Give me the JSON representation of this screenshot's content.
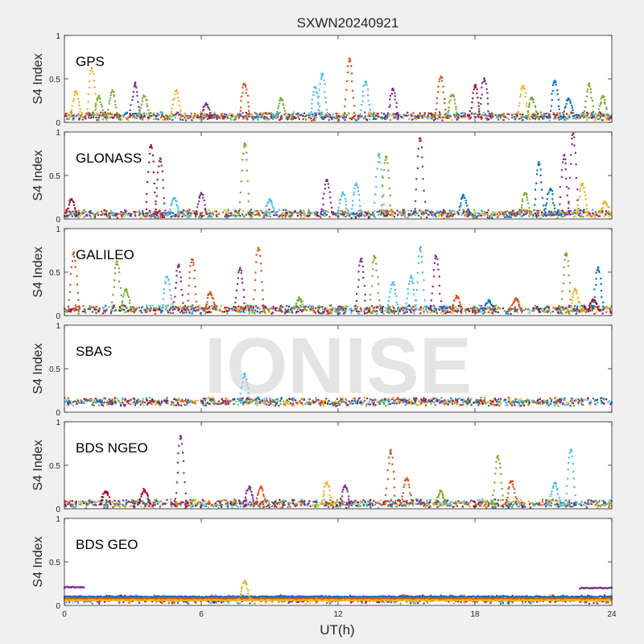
{
  "chart_data": {
    "type": "scatter",
    "title": "SXWN20240921",
    "xlabel": "UT(h)",
    "ylabel": "S4 Index",
    "xlim": [
      0,
      24
    ],
    "ylim": [
      0,
      1
    ],
    "x_ticks": [
      "0",
      "6",
      "12",
      "18",
      "24"
    ],
    "y_ticks": [
      "0",
      "0.5",
      "1"
    ],
    "grid": false,
    "watermark": "IONISE",
    "colors": [
      "#0072BD",
      "#D95319",
      "#EDB120",
      "#7E2F8E",
      "#77AC30",
      "#4DBEEE",
      "#A2142F"
    ],
    "panels": [
      {
        "label": "GPS",
        "baseline": 0.07,
        "spikes": [
          [
            0.5,
            0.35,
            2
          ],
          [
            1.2,
            0.62,
            2
          ],
          [
            1.5,
            0.3,
            4
          ],
          [
            2.1,
            0.36,
            4
          ],
          [
            3.1,
            0.45,
            3
          ],
          [
            3.5,
            0.3,
            4
          ],
          [
            4.9,
            0.36,
            2
          ],
          [
            6.2,
            0.22,
            3
          ],
          [
            7.9,
            0.44,
            1
          ],
          [
            9.5,
            0.27,
            4
          ],
          [
            11.0,
            0.4,
            5
          ],
          [
            11.3,
            0.55,
            5
          ],
          [
            12.5,
            0.73,
            1
          ],
          [
            13.2,
            0.47,
            5
          ],
          [
            14.4,
            0.38,
            3
          ],
          [
            16.5,
            0.53,
            1
          ],
          [
            17.0,
            0.32,
            4
          ],
          [
            18.0,
            0.42,
            6
          ],
          [
            18.4,
            0.5,
            3
          ],
          [
            20.1,
            0.42,
            2
          ],
          [
            20.5,
            0.28,
            4
          ],
          [
            21.5,
            0.48,
            0
          ],
          [
            22.1,
            0.27,
            0
          ],
          [
            23.0,
            0.44,
            4
          ],
          [
            23.6,
            0.3,
            4
          ]
        ]
      },
      {
        "label": "GLONASS",
        "baseline": 0.06,
        "spikes": [
          [
            0.3,
            0.22,
            6
          ],
          [
            3.8,
            0.85,
            6
          ],
          [
            4.2,
            0.7,
            3
          ],
          [
            4.8,
            0.24,
            5
          ],
          [
            6.0,
            0.3,
            3
          ],
          [
            7.9,
            0.87,
            4
          ],
          [
            9.0,
            0.22,
            5
          ],
          [
            11.5,
            0.45,
            3
          ],
          [
            12.2,
            0.3,
            5
          ],
          [
            12.8,
            0.4,
            5
          ],
          [
            13.8,
            0.75,
            5
          ],
          [
            14.1,
            0.72,
            4
          ],
          [
            15.6,
            0.93,
            3
          ],
          [
            17.5,
            0.27,
            0
          ],
          [
            20.2,
            0.3,
            4
          ],
          [
            20.8,
            0.65,
            0
          ],
          [
            21.3,
            0.35,
            0
          ],
          [
            21.9,
            0.73,
            3
          ],
          [
            22.3,
            0.98,
            3
          ],
          [
            22.7,
            0.4,
            2
          ],
          [
            23.7,
            0.2,
            2
          ]
        ]
      },
      {
        "label": "GALILEO",
        "baseline": 0.07,
        "spikes": [
          [
            0.4,
            0.72,
            1
          ],
          [
            2.3,
            0.62,
            4
          ],
          [
            2.7,
            0.3,
            4
          ],
          [
            4.5,
            0.45,
            5
          ],
          [
            5.0,
            0.58,
            3
          ],
          [
            5.6,
            0.65,
            1
          ],
          [
            6.4,
            0.27,
            1
          ],
          [
            7.7,
            0.55,
            3
          ],
          [
            8.5,
            0.78,
            1
          ],
          [
            10.3,
            0.2,
            4
          ],
          [
            13.0,
            0.65,
            3
          ],
          [
            13.6,
            0.68,
            4
          ],
          [
            14.4,
            0.38,
            5
          ],
          [
            15.2,
            0.45,
            5
          ],
          [
            15.6,
            0.78,
            5
          ],
          [
            16.3,
            0.68,
            3
          ],
          [
            17.2,
            0.22,
            1
          ],
          [
            18.6,
            0.17,
            0
          ],
          [
            19.8,
            0.2,
            1
          ],
          [
            22.0,
            0.72,
            4
          ],
          [
            22.4,
            0.3,
            2
          ],
          [
            23.2,
            0.18,
            6
          ],
          [
            23.4,
            0.55,
            0
          ]
        ]
      },
      {
        "label": "SBAS",
        "baseline": 0.12,
        "spikes": [
          [
            7.9,
            0.43,
            5
          ]
        ]
      },
      {
        "label": "BDS NGEO",
        "baseline": 0.06,
        "spikes": [
          [
            1.8,
            0.2,
            6
          ],
          [
            3.5,
            0.22,
            6
          ],
          [
            5.1,
            0.84,
            3
          ],
          [
            8.1,
            0.25,
            3
          ],
          [
            8.6,
            0.25,
            1
          ],
          [
            11.5,
            0.3,
            2
          ],
          [
            12.3,
            0.27,
            3
          ],
          [
            14.3,
            0.67,
            1
          ],
          [
            15.0,
            0.35,
            1
          ],
          [
            16.5,
            0.2,
            4
          ],
          [
            19.0,
            0.6,
            4
          ],
          [
            19.6,
            0.32,
            1
          ],
          [
            21.5,
            0.3,
            5
          ],
          [
            22.2,
            0.68,
            5
          ]
        ]
      },
      {
        "label": "BDS GEO",
        "baseline": 0.07,
        "spikes": [
          [
            7.9,
            0.28,
            2
          ]
        ],
        "bands": [
          {
            "x": [
              0,
              0.9
            ],
            "y": 0.21,
            "color": 3
          },
          {
            "x": [
              22.6,
              24
            ],
            "y": 0.2,
            "color": 3
          },
          {
            "x": [
              0,
              24
            ],
            "y": 0.1,
            "color": 0
          },
          {
            "x": [
              0,
              24
            ],
            "y": 0.08,
            "color": 1
          },
          {
            "x": [
              0,
              24
            ],
            "y": 0.06,
            "color": 2
          }
        ]
      }
    ]
  }
}
